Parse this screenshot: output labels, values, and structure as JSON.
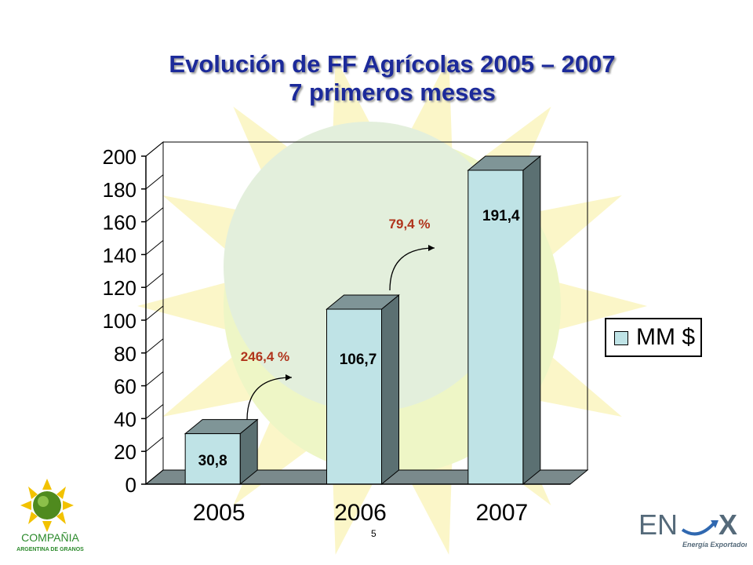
{
  "title": {
    "line1": "Evolución de FF Agrícolas  2005 – 2007",
    "line2": "7 primeros meses"
  },
  "chart_data": {
    "type": "bar",
    "categories": [
      "2005",
      "2006",
      "2007"
    ],
    "series": [
      {
        "name": "MM $",
        "values": [
          30.8,
          106.7,
          191.4
        ]
      }
    ],
    "value_labels": [
      "30,8",
      "106,7",
      "191,4"
    ],
    "growth_annotations": [
      {
        "from": "2005",
        "to": "2006",
        "label": "246,4 %"
      },
      {
        "from": "2006",
        "to": "2007",
        "label": "79,4 %"
      }
    ],
    "yticks": [
      "0",
      "20",
      "40",
      "60",
      "80",
      "100",
      "120",
      "140",
      "160",
      "180",
      "200"
    ],
    "ylim": [
      0,
      200
    ],
    "grid": false,
    "legend_position": "right",
    "style": "3d",
    "colors": {
      "bar_front": "#bfe3e6",
      "bar_side": "#5b7072",
      "bar_top": "#7f9597",
      "annotation": "#b0341c"
    }
  },
  "legend": {
    "label": "MM $"
  },
  "page_number": "5",
  "logos": {
    "left_line1": "COMPAÑIA",
    "left_line2": "ARGENTINA DE GRANOS",
    "right_main": "EN",
    "right_sub": "Energía Exportadora"
  }
}
